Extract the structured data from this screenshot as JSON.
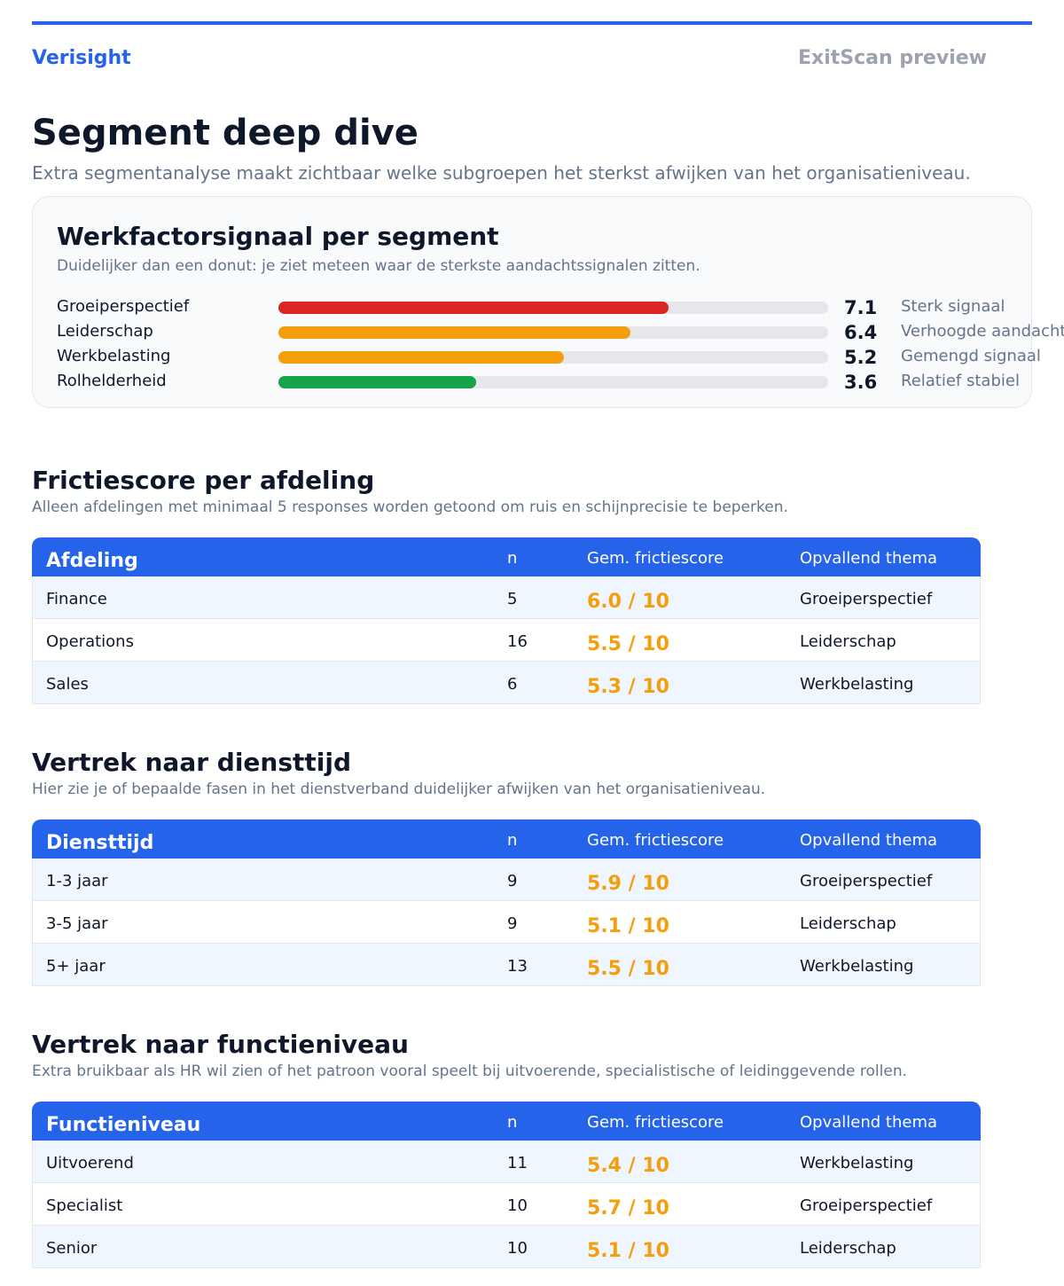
{
  "header": {
    "brand": "Verisight",
    "product": "ExitScan preview"
  },
  "page": {
    "title": "Segment deep dive",
    "subtitle": "Extra segmentanalyse maakt zichtbaar welke subgroepen het sterkst afwijken van het organisatieniveau."
  },
  "chart_data": {
    "type": "bar",
    "orientation": "horizontal",
    "title": "Werkfactorsignaal per segment",
    "subtitle": "Duidelijker dan een donut: je ziet meteen waar de sterkste aandachtssignalen zitten.",
    "categories": [
      "Groeiperspectief",
      "Leiderschap",
      "Werkbelasting",
      "Rolhelderheid"
    ],
    "values": [
      7.1,
      6.4,
      5.2,
      3.6
    ],
    "colors": [
      "#dc2626",
      "#f59e0b",
      "#f59e0b",
      "#16a34a"
    ],
    "signal_labels": [
      "Sterk signaal",
      "Verhoogde aandacht",
      "Gemengd signaal",
      "Relatief stabiel"
    ],
    "xlim": [
      0,
      10
    ]
  },
  "sections": [
    {
      "title": "Frictiescore per afdeling",
      "subtitle": "Alleen afdelingen met minimaal 5 responses worden getoond om ruis en schijnprecisie te beperken.",
      "table": {
        "columns": [
          "Afdeling",
          "n",
          "Gem. frictiescore",
          "Opvallend thema"
        ],
        "rows": [
          [
            "Finance",
            5,
            "6.0 / 10",
            "Groeiperspectief"
          ],
          [
            "Operations",
            16,
            "5.5 / 10",
            "Leiderschap"
          ],
          [
            "Sales",
            6,
            "5.3 / 10",
            "Werkbelasting"
          ]
        ]
      }
    },
    {
      "title": "Vertrek naar diensttijd",
      "subtitle": "Hier zie je of bepaalde fasen in het dienstverband duidelijker afwijken van het organisatieniveau.",
      "table": {
        "columns": [
          "Diensttijd",
          "n",
          "Gem. frictiescore",
          "Opvallend thema"
        ],
        "rows": [
          [
            "1-3 jaar",
            9,
            "5.9 / 10",
            "Groeiperspectief"
          ],
          [
            "3-5 jaar",
            9,
            "5.1 / 10",
            "Leiderschap"
          ],
          [
            "5+ jaar",
            13,
            "5.5 / 10",
            "Werkbelasting"
          ]
        ]
      }
    },
    {
      "title": "Vertrek naar functieniveau",
      "subtitle": "Extra bruikbaar als HR wil zien of het patroon vooral speelt bij uitvoerende, specialistische of leidinggevende rollen.",
      "table": {
        "columns": [
          "Functieniveau",
          "n",
          "Gem. frictiescore",
          "Opvallend thema"
        ],
        "rows": [
          [
            "Uitvoerend",
            11,
            "5.4 / 10",
            "Werkbelasting"
          ],
          [
            "Specialist",
            10,
            "5.7 / 10",
            "Groeiperspectief"
          ],
          [
            "Senior",
            10,
            "5.1 / 10",
            "Leiderschap"
          ]
        ]
      }
    }
  ]
}
